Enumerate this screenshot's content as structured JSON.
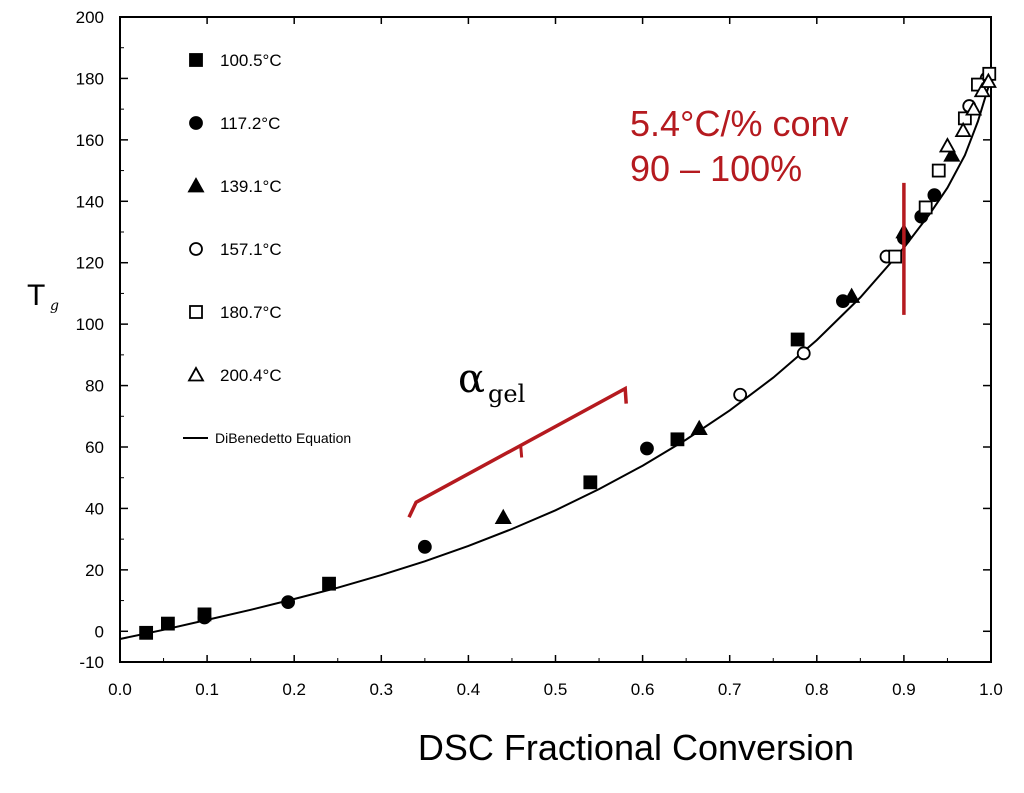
{
  "chart_data": {
    "type": "scatter",
    "xlabel": "DSC Fractional Conversion",
    "ylabel": "T",
    "ylabel_subscript": "g",
    "xlim": [
      0.0,
      1.0
    ],
    "ylim": [
      -10,
      200
    ],
    "x_ticks": [
      "0.0",
      "0.1",
      "0.2",
      "0.3",
      "0.4",
      "0.5",
      "0.6",
      "0.7",
      "0.8",
      "0.9",
      "1.0"
    ],
    "y_ticks": [
      "-10",
      "0",
      "20",
      "40",
      "60",
      "80",
      "100",
      "120",
      "140",
      "160",
      "180",
      "200"
    ],
    "legend_placement": "top-left",
    "series": [
      {
        "name": "100.5°C",
        "marker": "square-filled",
        "points": [
          [
            0.03,
            -0.5
          ],
          [
            0.055,
            2.5
          ],
          [
            0.097,
            5.5
          ],
          [
            0.24,
            15.5
          ],
          [
            0.54,
            48.5
          ],
          [
            0.64,
            62.5
          ],
          [
            0.778,
            95
          ]
        ]
      },
      {
        "name": "117.2°C",
        "marker": "circle-filled",
        "points": [
          [
            0.097,
            4.5
          ],
          [
            0.193,
            9.5
          ],
          [
            0.35,
            27.5
          ],
          [
            0.605,
            59.5
          ],
          [
            0.83,
            107.5
          ],
          [
            0.9,
            128
          ],
          [
            0.92,
            135
          ],
          [
            0.935,
            142
          ]
        ]
      },
      {
        "name": "139.1°C",
        "marker": "triangle-filled",
        "points": [
          [
            0.44,
            37
          ],
          [
            0.665,
            66
          ],
          [
            0.84,
            109
          ],
          [
            0.9,
            130
          ],
          [
            0.955,
            155
          ]
        ]
      },
      {
        "name": "157.1°C",
        "marker": "circle-open",
        "points": [
          [
            0.712,
            77
          ],
          [
            0.785,
            90.5
          ],
          [
            0.88,
            122
          ],
          [
            0.975,
            171
          ],
          [
            0.995,
            180
          ]
        ]
      },
      {
        "name": "180.7°C",
        "marker": "square-open",
        "points": [
          [
            0.89,
            122
          ],
          [
            0.925,
            138
          ],
          [
            0.94,
            150
          ],
          [
            0.97,
            167
          ],
          [
            0.985,
            178
          ],
          [
            0.998,
            181.5
          ]
        ]
      },
      {
        "name": "200.4°C",
        "marker": "triangle-open",
        "points": [
          [
            0.95,
            158
          ],
          [
            0.968,
            163
          ],
          [
            0.98,
            170
          ],
          [
            0.99,
            176
          ],
          [
            0.997,
            179
          ]
        ]
      }
    ],
    "fit_line": {
      "name": "DiBenedetto Equation",
      "points": [
        [
          0.0,
          -2.5
        ],
        [
          0.05,
          0.5
        ],
        [
          0.1,
          3.7
        ],
        [
          0.15,
          7.0
        ],
        [
          0.2,
          10.5
        ],
        [
          0.25,
          14.2
        ],
        [
          0.3,
          18.3
        ],
        [
          0.35,
          22.8
        ],
        [
          0.4,
          27.8
        ],
        [
          0.45,
          33.3
        ],
        [
          0.5,
          39.4
        ],
        [
          0.55,
          46.3
        ],
        [
          0.6,
          53.9
        ],
        [
          0.65,
          62.4
        ],
        [
          0.7,
          71.9
        ],
        [
          0.75,
          82.6
        ],
        [
          0.8,
          94.8
        ],
        [
          0.85,
          108.7
        ],
        [
          0.9,
          124.9
        ],
        [
          0.93,
          136.0
        ],
        [
          0.95,
          144.4
        ],
        [
          0.97,
          155.0
        ],
        [
          0.985,
          166.0
        ],
        [
          1.0,
          180.0
        ]
      ]
    },
    "annotations": {
      "red_text_line1": "5.4°C/% conv",
      "red_text_line2": "90 – 100%",
      "red_line_x": 0.9,
      "red_line_y": [
        103,
        146
      ],
      "alpha_symbol": "α",
      "alpha_subscript": "gel",
      "bracket_x": [
        0.34,
        0.58
      ],
      "bracket_y": [
        42,
        79
      ]
    },
    "grid": false
  },
  "colors": {
    "axis": "#000000",
    "marker": "#000000",
    "annotation_red": "#b51a1f"
  }
}
